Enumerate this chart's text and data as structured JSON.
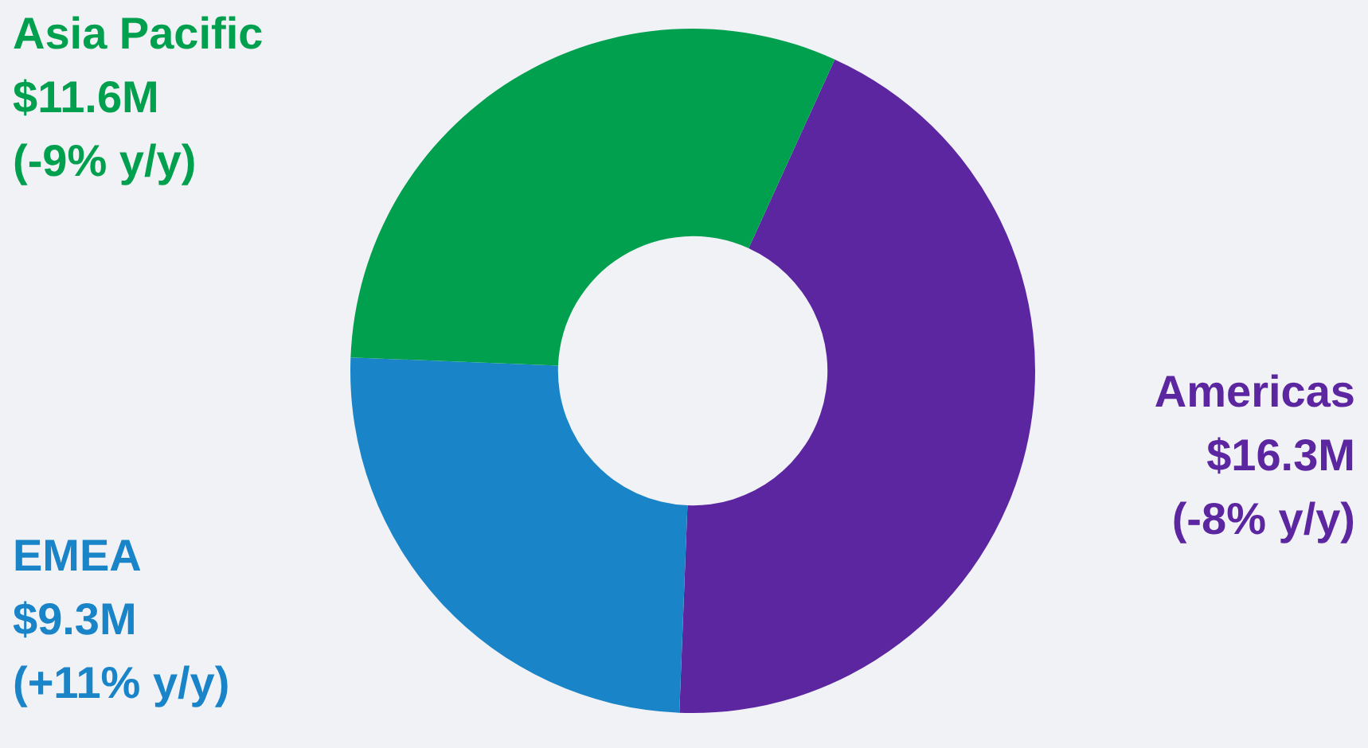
{
  "chart_data": {
    "type": "donut",
    "categories": [
      "Americas",
      "EMEA",
      "Asia Pacific"
    ],
    "values": [
      16.3,
      9.3,
      11.6
    ],
    "colors": [
      "#5c26a0",
      "#1a84c8",
      "#00a04f"
    ],
    "value_labels": [
      "$16.3M",
      "$9.3M",
      "$11.6M"
    ],
    "annotations": [
      "(-8% y/y)",
      "(+11% y/y)",
      "(-9% y/y)"
    ],
    "legend": false
  }
}
